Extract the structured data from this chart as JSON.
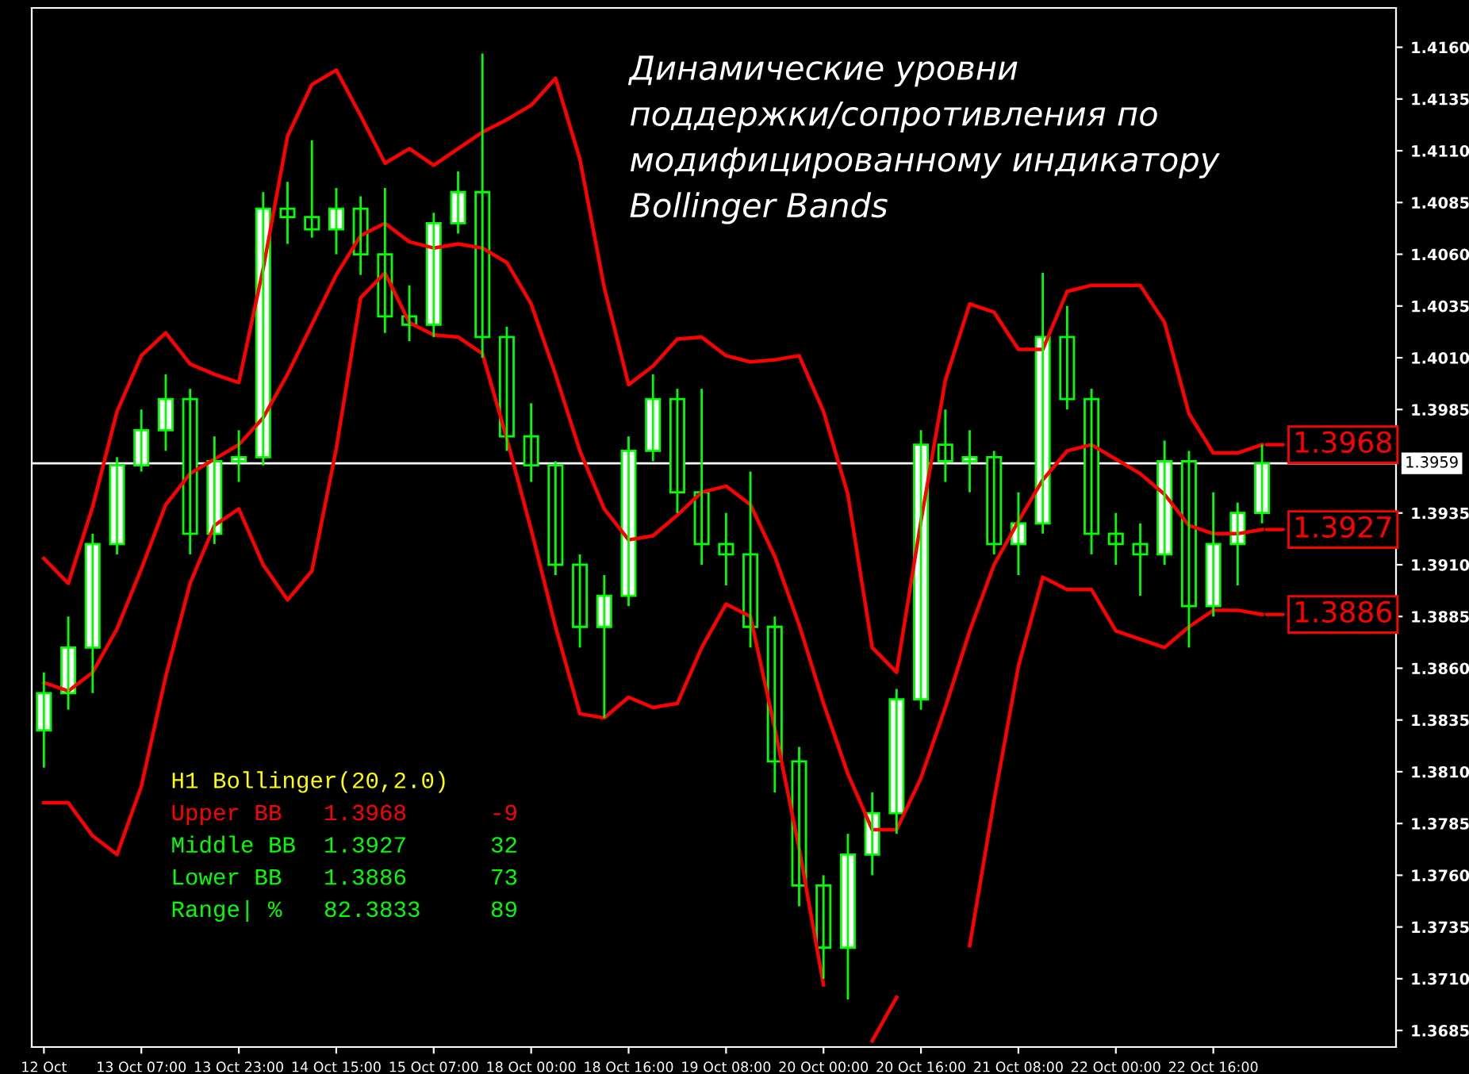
{
  "chart_data": {
    "type": "candlestick",
    "title": "Динамические уровни\nподдержки/сопротивления по\nмодифицированному индикатору\nBollinger Bands",
    "color": "#00ff00",
    "categories": [
      "12 Oct",
      null,
      null,
      null,
      "13 Oct 07:00",
      null,
      null,
      null,
      "13 Oct 23:00",
      null,
      null,
      null,
      "14 Oct 15:00",
      null,
      null,
      null,
      "15 Oct 07:00",
      null,
      null,
      null,
      "18 Oct 00:00",
      null,
      null,
      null,
      "18 Oct 16:00",
      null,
      null,
      null,
      "19 Oct 08:00",
      null,
      null,
      null,
      "20 Oct 00:00",
      null,
      null,
      null,
      "20 Oct 16:00",
      null,
      null,
      null,
      "21 Oct 08:00",
      null,
      null,
      null,
      "22 Oct 00:00",
      null,
      null,
      null,
      "22 Oct 16:00",
      null,
      null
    ],
    "ohlc": [
      [
        1.383,
        1.3858,
        1.3812,
        1.3848
      ],
      [
        1.3848,
        1.3885,
        1.384,
        1.387
      ],
      [
        1.387,
        1.3925,
        1.3848,
        1.392
      ],
      [
        1.392,
        1.3962,
        1.3915,
        1.3958
      ],
      [
        1.3958,
        1.3985,
        1.3955,
        1.3975
      ],
      [
        1.3975,
        1.4002,
        1.3965,
        1.399
      ],
      [
        1.399,
        1.3995,
        1.3915,
        1.3925
      ],
      [
        1.3925,
        1.3972,
        1.392,
        1.396
      ],
      [
        1.396,
        1.3975,
        1.395,
        1.3962
      ],
      [
        1.3962,
        1.409,
        1.3958,
        1.4082
      ],
      [
        1.4082,
        1.4095,
        1.4065,
        1.4078
      ],
      [
        1.4078,
        1.4115,
        1.4068,
        1.4072
      ],
      [
        1.4072,
        1.4092,
        1.406,
        1.4082
      ],
      [
        1.4082,
        1.4088,
        1.405,
        1.406
      ],
      [
        1.406,
        1.4092,
        1.4022,
        1.403
      ],
      [
        1.403,
        1.4045,
        1.4018,
        1.4026
      ],
      [
        1.4026,
        1.408,
        1.402,
        1.4075
      ],
      [
        1.4075,
        1.41,
        1.407,
        1.409
      ],
      [
        1.409,
        1.4157,
        1.401,
        1.402
      ],
      [
        1.402,
        1.4025,
        1.3965,
        1.3972
      ],
      [
        1.3972,
        1.3988,
        1.395,
        1.3958
      ],
      [
        1.3958,
        1.396,
        1.3905,
        1.391
      ],
      [
        1.391,
        1.3915,
        1.387,
        1.388
      ],
      [
        1.388,
        1.3905,
        1.3836,
        1.3895
      ],
      [
        1.3895,
        1.3972,
        1.389,
        1.3965
      ],
      [
        1.3965,
        1.4002,
        1.396,
        1.399
      ],
      [
        1.399,
        1.3995,
        1.3935,
        1.3945
      ],
      [
        1.3945,
        1.3995,
        1.391,
        1.392
      ],
      [
        1.392,
        1.3935,
        1.39,
        1.3915
      ],
      [
        1.3915,
        1.3955,
        1.387,
        1.388
      ],
      [
        1.388,
        1.3885,
        1.38,
        1.3815
      ],
      [
        1.3815,
        1.3822,
        1.3745,
        1.3755
      ],
      [
        1.3755,
        1.376,
        1.371,
        1.3725
      ],
      [
        1.3725,
        1.378,
        1.37,
        1.377
      ],
      [
        1.377,
        1.38,
        1.376,
        1.379
      ],
      [
        1.379,
        1.385,
        1.378,
        1.3845
      ],
      [
        1.3845,
        1.3975,
        1.384,
        1.3968
      ],
      [
        1.3968,
        1.3985,
        1.395,
        1.396
      ],
      [
        1.396,
        1.3975,
        1.3945,
        1.3962
      ],
      [
        1.3962,
        1.3965,
        1.3915,
        1.392
      ],
      [
        1.392,
        1.3945,
        1.3905,
        1.393
      ],
      [
        1.393,
        1.4051,
        1.3925,
        1.402
      ],
      [
        1.402,
        1.4035,
        1.3985,
        1.399
      ],
      [
        1.399,
        1.3995,
        1.3915,
        1.3925
      ],
      [
        1.3925,
        1.3935,
        1.391,
        1.392
      ],
      [
        1.392,
        1.393,
        1.3895,
        1.3915
      ],
      [
        1.3915,
        1.397,
        1.391,
        1.396
      ],
      [
        1.396,
        1.3965,
        1.387,
        1.389
      ],
      [
        1.389,
        1.3945,
        1.3885,
        1.392
      ],
      [
        1.392,
        1.394,
        1.39,
        1.3935
      ],
      [
        1.3935,
        1.3968,
        1.393,
        1.3959
      ]
    ],
    "series": [
      {
        "type": "line",
        "color": "#ff0000",
        "values": [
          1.3913,
          1.3901,
          1.3938,
          1.3984,
          1.4011,
          1.4022,
          1.4007,
          1.4002,
          1.3998,
          1.4053,
          1.4117,
          1.4142,
          1.4149,
          1.4127,
          1.4104,
          1.4111,
          1.4103,
          1.4111,
          1.4119,
          1.4125,
          1.4132,
          1.4145,
          1.4106,
          1.4044,
          1.3997,
          1.4006,
          1.4019,
          1.402,
          1.4011,
          1.4008,
          1.4009,
          1.4011,
          1.3984,
          1.3944,
          1.387,
          1.3858,
          1.3931,
          1.3999,
          1.4036,
          1.4032,
          1.4014,
          1.4014,
          1.4042,
          1.4045,
          1.4045,
          1.4045,
          1.4027,
          1.3983,
          1.3964,
          1.3964,
          1.3968
        ]
      },
      {
        "type": "line",
        "color": "#ff0000",
        "values": [
          1.3853,
          1.3849,
          1.3858,
          1.3879,
          1.3908,
          1.3939,
          1.3954,
          1.3961,
          1.3968,
          1.3981,
          1.4002,
          1.4026,
          1.405,
          1.4069,
          1.4075,
          1.4066,
          1.4063,
          1.4065,
          1.4063,
          1.4056,
          1.4036,
          1.4002,
          1.3965,
          1.3937,
          1.3922,
          1.3924,
          1.3934,
          1.3945,
          1.3948,
          1.3939,
          1.3914,
          1.3881,
          1.3843,
          1.3809,
          1.3782,
          1.3782,
          1.3807,
          1.3841,
          1.3878,
          1.391,
          1.3931,
          1.3951,
          1.3965,
          1.3968,
          1.3961,
          1.3954,
          1.3944,
          1.3929,
          1.3925,
          1.3925,
          1.3927
        ]
      },
      {
        "type": "line",
        "color": "#ff0000",
        "values": [
          1.3795,
          1.3795,
          1.3779,
          1.377,
          1.3803,
          1.3856,
          1.3901,
          1.3929,
          1.3937,
          1.391,
          1.3893,
          1.3907,
          1.3966,
          1.4039,
          1.4051,
          1.4027,
          1.4021,
          1.402,
          1.4012,
          1.3971,
          1.3927,
          1.388,
          1.3838,
          1.3836,
          1.3846,
          1.3841,
          1.3843,
          1.387,
          1.3891,
          1.3885,
          1.3831,
          1.3773,
          1.3707,
          null,
          1.368,
          1.3701,
          null,
          null,
          1.3726,
          1.3796,
          1.3861,
          1.3904,
          1.3898,
          1.3898,
          1.3878,
          1.3874,
          1.387,
          1.388,
          1.3888,
          1.3888,
          1.3886
        ]
      }
    ],
    "ylim": [
      1.3677,
      1.4179
    ],
    "yticks": [
      {
        "value": 1.416,
        "label": "1.4160"
      },
      {
        "value": 1.4135,
        "label": "1.4135"
      },
      {
        "value": 1.411,
        "label": "1.4110"
      },
      {
        "value": 1.4085,
        "label": "1.4085"
      },
      {
        "value": 1.406,
        "label": "1.4060"
      },
      {
        "value": 1.4035,
        "label": "1.4035"
      },
      {
        "value": 1.401,
        "label": "1.4010"
      },
      {
        "value": 1.3985,
        "label": "1.3985"
      },
      {
        "value": 1.3935,
        "label": "1.3935"
      },
      {
        "value": 1.391,
        "label": "1.3910"
      },
      {
        "value": 1.3885,
        "label": "1.3885"
      },
      {
        "value": 1.386,
        "label": "1.3860"
      },
      {
        "value": 1.3835,
        "label": "1.3835"
      },
      {
        "value": 1.381,
        "label": "1.3810"
      },
      {
        "value": 1.3785,
        "label": "1.3785"
      },
      {
        "value": 1.376,
        "label": "1.3760"
      },
      {
        "value": 1.3735,
        "label": "1.3735"
      },
      {
        "value": 1.371,
        "label": "1.3710"
      },
      {
        "value": 1.3685,
        "label": "1.3685"
      }
    ],
    "ref_lines": [
      {
        "axis": "y",
        "value": 1.3959,
        "label": "1.3959",
        "color": "#ffffff"
      }
    ],
    "annotations": [
      "1.3968",
      "1.3927",
      "1.3886",
      "H1 Bollinger(20,2.0)",
      "Upper BB   1.3968      -9",
      "Middle BB  1.3927      32",
      "Lower BB   1.3886      73",
      "Range| %   82.3833     89"
    ],
    "grid": false
  }
}
